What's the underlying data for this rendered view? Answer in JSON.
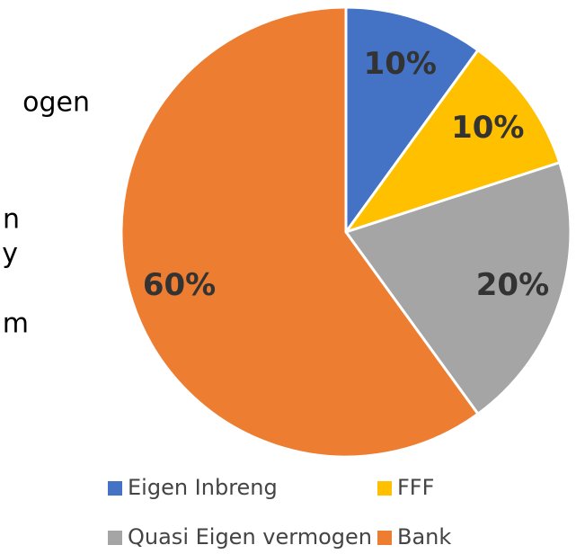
{
  "side_text": [
    "ogen",
    "n",
    "y",
    "m"
  ],
  "chart_data": {
    "type": "pie",
    "categories": [
      "Eigen Inbreng",
      "FFF",
      "Quasi Eigen vermogen",
      "Bank"
    ],
    "values": [
      10,
      10,
      20,
      60
    ],
    "value_labels": [
      "10%",
      "10%",
      "20%",
      "60%"
    ],
    "colors": [
      "#4472c4",
      "#ffc000",
      "#a5a5a5",
      "#ed7d31"
    ],
    "legend": "bottom"
  }
}
